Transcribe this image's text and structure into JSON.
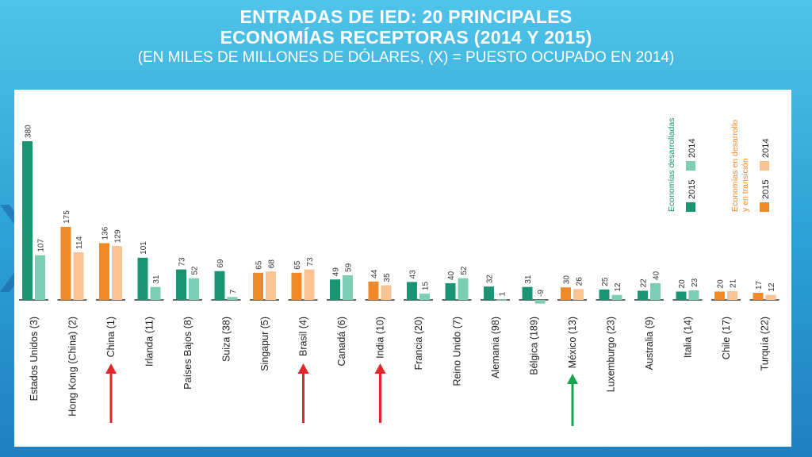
{
  "slide": {
    "title_line1": "ENTRADAS DE IED: 20 PRINCIPALES",
    "title_line2": "ECONOMÍAS RECEPTORAS (2014 Y 2015)",
    "title_line3": "(EN MILES DE MILLONES DE DÓLARES,  (X) = PUESTO OCUPADO EN 2014)"
  },
  "colors": {
    "developed_2015": "#1a9473",
    "developed_2014": "#7ccfb4",
    "developing_2015": "#f0892a",
    "developing_2014": "#f9c393",
    "arrow_red": "#e3262a",
    "arrow_green": "#18a550"
  },
  "chart_data": {
    "type": "bar",
    "title": "ENTRADAS DE IED: 20 PRINCIPALES ECONOMÍAS RECEPTORAS (2014 Y 2015)",
    "ylabel": "Miles de millones de dólares",
    "ylim": [
      -9,
      380
    ],
    "categories": [
      "Estados Unidos (3)",
      "Hong Kong (China) (2)",
      "China (1)",
      "Irlanda (11)",
      "Países Bajos (8)",
      "Suiza (38)",
      "Singapur (5)",
      "Brasil (4)",
      "Canadá (6)",
      "India (10)",
      "Francia (20)",
      "Reino Unido (7)",
      "Alemania (98)",
      "Bélgica (189)",
      "México (13)",
      "Luxemburgo (23)",
      "Australia (9)",
      "Italia (14)",
      "Chile (17)",
      "Turquía (22)"
    ],
    "group": [
      "developed",
      "developing",
      "developing",
      "developed",
      "developed",
      "developed",
      "developing",
      "developing",
      "developed",
      "developing",
      "developed",
      "developed",
      "developed",
      "developed",
      "developing",
      "developed",
      "developed",
      "developed",
      "developing",
      "developing"
    ],
    "series": [
      {
        "name": "2015",
        "values": [
          380,
          175,
          136,
          101,
          73,
          69,
          65,
          65,
          49,
          44,
          43,
          40,
          32,
          31,
          30,
          25,
          22,
          20,
          20,
          17
        ]
      },
      {
        "name": "2014",
        "values": [
          107,
          114,
          129,
          31,
          52,
          7,
          68,
          73,
          59,
          35,
          15,
          52,
          1,
          -9,
          26,
          12,
          40,
          23,
          21,
          12
        ]
      }
    ],
    "highlighted": [
      {
        "category": "China (1)",
        "arrow": "red"
      },
      {
        "category": "Brasil (4)",
        "arrow": "red"
      },
      {
        "category": "India (10)",
        "arrow": "red"
      },
      {
        "category": "México (13)",
        "arrow": "green"
      }
    ],
    "legend": {
      "position": "top-right",
      "groups": [
        {
          "label": "Economías desarrolladas",
          "items": [
            "2015",
            "2014"
          ]
        },
        {
          "label": "Economías en desarrollo y en transición",
          "items": [
            "2015",
            "2014"
          ]
        }
      ]
    }
  }
}
